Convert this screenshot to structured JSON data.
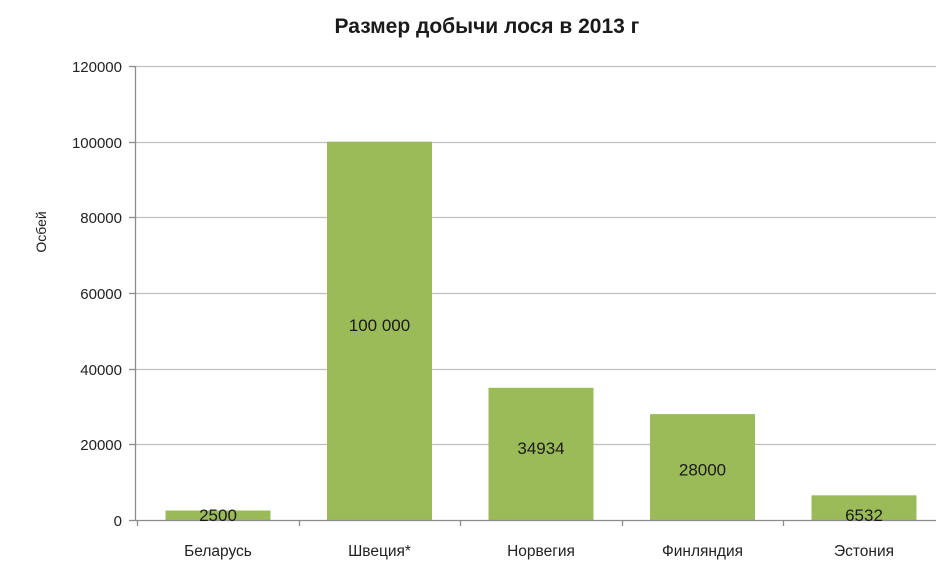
{
  "chart_data": {
    "type": "bar",
    "title": "Размер добычи лося в 2013 г",
    "xlabel": "",
    "ylabel": "Осбей",
    "categories": [
      "Беларусь",
      "Швеция*",
      "Норвегия",
      "Финляндия",
      "Эстония"
    ],
    "values": [
      2500,
      100000,
      34934,
      28000,
      6532
    ],
    "data_labels": [
      "2500",
      "100 000",
      "34934",
      "28000",
      "6532"
    ],
    "ylim": [
      0,
      120000
    ],
    "yticks": [
      0,
      20000,
      40000,
      60000,
      80000,
      100000,
      120000
    ],
    "ytick_labels": [
      "0",
      "20000",
      "40000",
      "60000",
      "80000",
      "100000",
      "120000"
    ],
    "grid": true,
    "legend": "none",
    "colors": {
      "bar": "#9bbb59",
      "grid": "#bfbfbf",
      "axis": "#8c8c8c"
    }
  }
}
